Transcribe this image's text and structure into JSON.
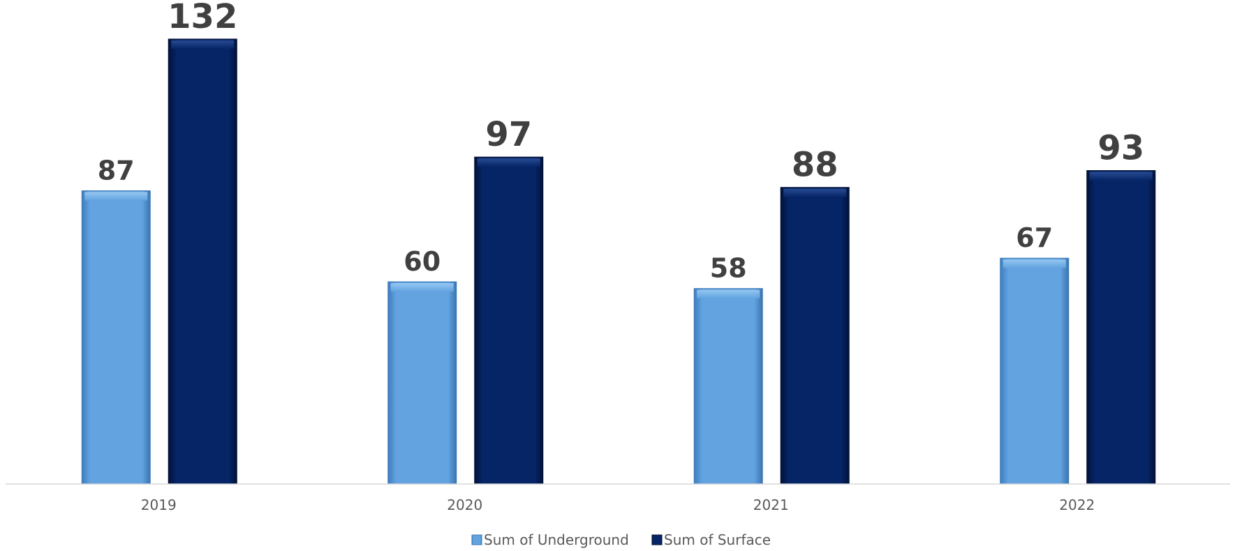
{
  "chart_data": {
    "type": "bar",
    "title": "",
    "xlabel": "",
    "ylabel": "",
    "categories": [
      "2019",
      "2020",
      "2021",
      "2022"
    ],
    "series": [
      {
        "name": "Sum of Underground",
        "values": [
          87,
          60,
          58,
          67
        ],
        "color": "#62A3E0"
      },
      {
        "name": "Sum of Surface",
        "values": [
          132,
          97,
          88,
          93
        ],
        "color": "#062566"
      }
    ],
    "ylim": [
      0,
      132
    ],
    "grid": false,
    "legend": "bottom-center",
    "axis_color": "#D9D9D9",
    "label_color": "#404040"
  }
}
